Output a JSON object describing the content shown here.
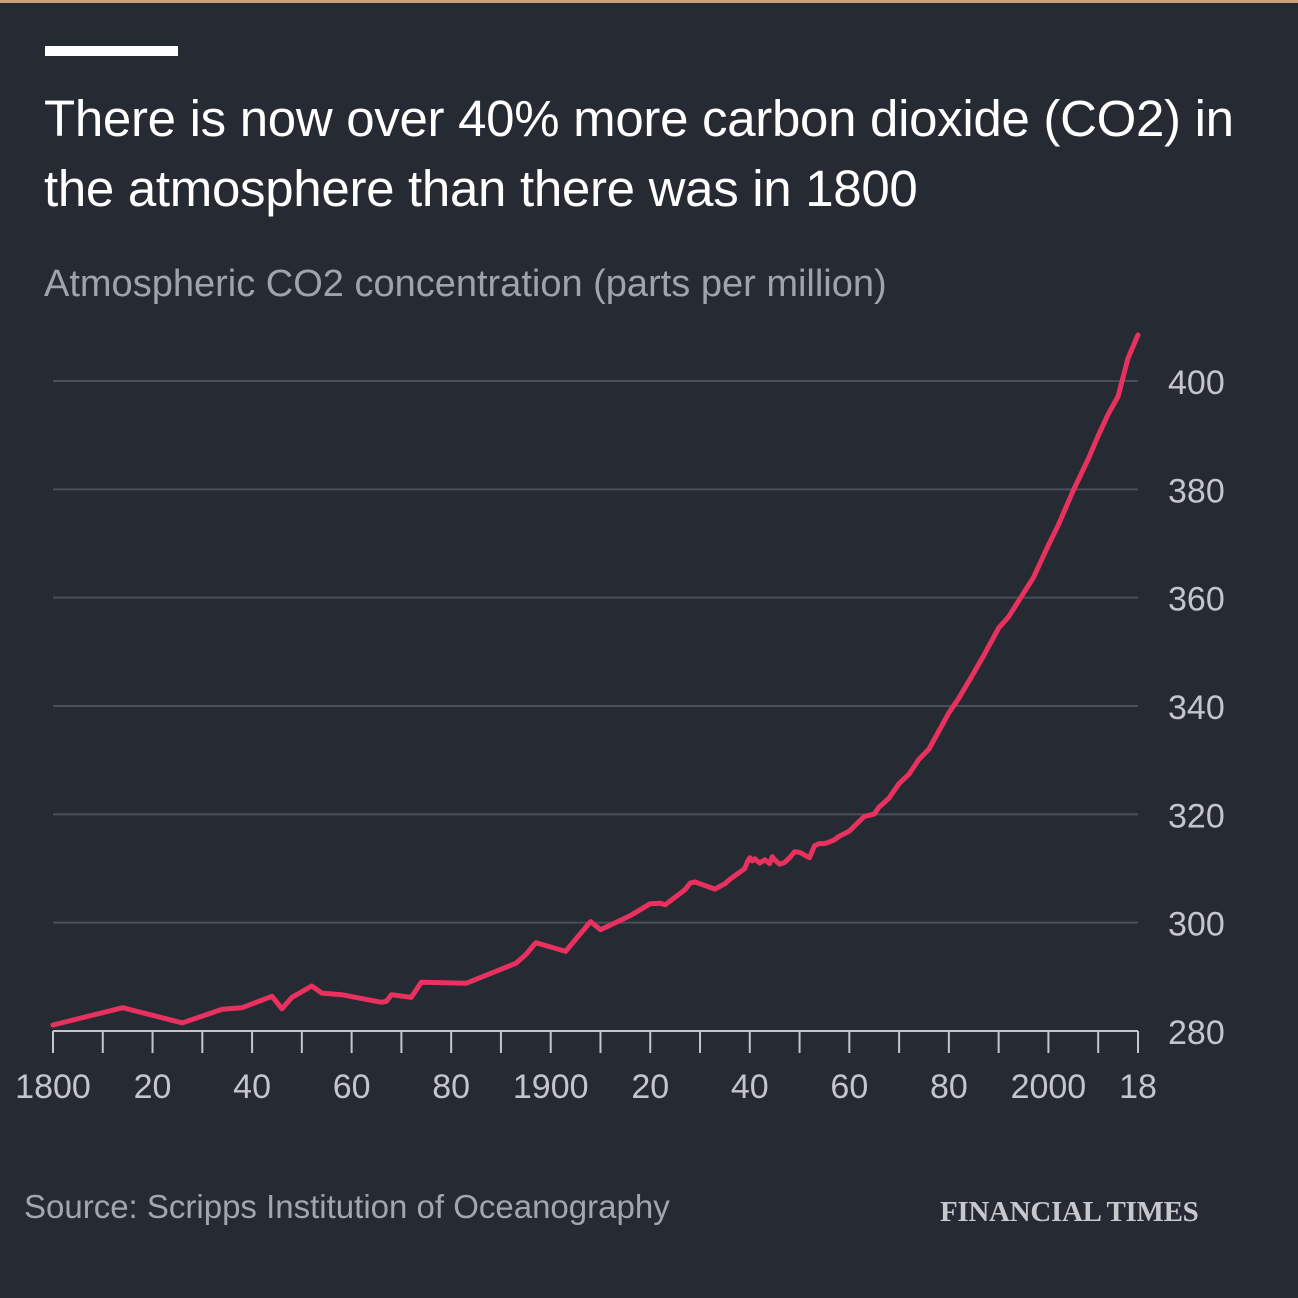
{
  "title": "There is now over 40% more carbon dioxide (CO2) in the atmosphere than there was in 1800",
  "subtitle": "Atmospheric CO2 concentration (parts per million)",
  "source": "Source: Scripps Institution of Oceanography",
  "brand": "FINANCIAL TIMES",
  "colors": {
    "background": "#262a33",
    "line": "#e8315f",
    "grid": "#4a4e57",
    "axis": "#c4c6cb",
    "label": "#c4c6cb",
    "title": "#ffffff",
    "subtitle": "#9fa3ab"
  },
  "chart_data": {
    "type": "line",
    "title": "There is now over 40% more carbon dioxide (CO2) in the atmosphere than there was in 1800",
    "subtitle": "Atmospheric CO2 concentration (parts per million)",
    "xlabel": "",
    "ylabel": "",
    "xlim": [
      1800,
      2018
    ],
    "ylim": [
      280,
      405
    ],
    "y_ticks": [
      280,
      300,
      320,
      340,
      360,
      380,
      400
    ],
    "y_tick_labels": [
      "280",
      "300",
      "320",
      "340",
      "360",
      "380",
      "400"
    ],
    "x_ticks": [
      1800,
      1810,
      1820,
      1830,
      1840,
      1850,
      1860,
      1870,
      1880,
      1890,
      1900,
      1910,
      1920,
      1930,
      1940,
      1950,
      1960,
      1970,
      1980,
      1990,
      2000,
      2010,
      2018
    ],
    "x_tick_labels": [
      {
        "x": 1800,
        "label": "1800"
      },
      {
        "x": 1820,
        "label": "20"
      },
      {
        "x": 1840,
        "label": "40"
      },
      {
        "x": 1860,
        "label": "60"
      },
      {
        "x": 1880,
        "label": "80"
      },
      {
        "x": 1900,
        "label": "1900"
      },
      {
        "x": 1920,
        "label": "20"
      },
      {
        "x": 1940,
        "label": "40"
      },
      {
        "x": 1960,
        "label": "60"
      },
      {
        "x": 1980,
        "label": "80"
      },
      {
        "x": 2000,
        "label": "2000"
      },
      {
        "x": 2018,
        "label": "18"
      }
    ],
    "y_axis_position": "right",
    "grid": true,
    "legend": "none",
    "series": [
      {
        "x": [
          1800,
          1814,
          1826,
          1834,
          1838,
          1844,
          1846,
          1848,
          1852,
          1854,
          1858,
          1866,
          1867,
          1868,
          1872,
          1874,
          1883,
          1893,
          1895,
          1897,
          1900,
          1903,
          1908,
          1910,
          1916,
          1920,
          1922,
          1923,
          1927,
          1928,
          1929,
          1933,
          1935,
          1936,
          1939,
          1939.5,
          1940,
          1940.5,
          1941,
          1942,
          1943,
          1944,
          1944.5,
          1945,
          1946,
          1947,
          1948,
          1949,
          1950,
          1952,
          1953,
          1954,
          1955,
          1956,
          1957,
          1958,
          1960,
          1963,
          1965,
          1966,
          1967,
          1968,
          1970,
          1972,
          1974,
          1976,
          1978,
          1980,
          1982,
          1985,
          1987,
          1990,
          1992,
          1995,
          1997,
          2000,
          2002,
          2005,
          2008,
          2010,
          2012,
          2014,
          2016,
          2018
        ],
        "y": [
          281.1,
          284.3,
          281.5,
          284.0,
          284.3,
          286.4,
          284.1,
          286.2,
          288.3,
          287.0,
          286.7,
          285.3,
          285.5,
          286.7,
          286.2,
          289.0,
          288.8,
          292.5,
          294.1,
          296.3,
          295.5,
          294.7,
          300.2,
          298.7,
          301.3,
          303.5,
          303.6,
          303.3,
          306.1,
          307.3,
          307.5,
          306.2,
          307.2,
          308.0,
          310.0,
          311.2,
          312.0,
          311.4,
          311.8,
          311.0,
          311.6,
          310.9,
          312.2,
          311.6,
          310.8,
          311.1,
          312.0,
          313.1,
          313.0,
          312.0,
          314.2,
          314.6,
          314.6,
          314.9,
          315.3,
          315.97,
          316.91,
          319.62,
          320.04,
          321.38,
          322.16,
          323.04,
          325.68,
          327.45,
          330.18,
          332.07,
          335.41,
          338.75,
          341.44,
          346.12,
          349.31,
          354.39,
          356.46,
          360.82,
          363.73,
          369.71,
          373.45,
          379.8,
          385.59,
          389.9,
          393.85,
          397.16,
          404.21,
          408.52
        ]
      }
    ]
  }
}
